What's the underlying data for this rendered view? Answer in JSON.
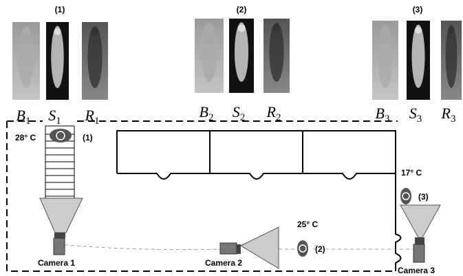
{
  "groups": [
    {
      "label": "(1)",
      "images": [
        {
          "letter": "B",
          "sub": "1"
        },
        {
          "letter": "S",
          "sub": "1"
        },
        {
          "letter": "R",
          "sub": "1"
        }
      ]
    },
    {
      "label": "(2)",
      "images": [
        {
          "letter": "B",
          "sub": "2"
        },
        {
          "letter": "S",
          "sub": "2"
        },
        {
          "letter": "R",
          "sub": "2"
        }
      ]
    },
    {
      "label": "(3)",
      "images": [
        {
          "letter": "B",
          "sub": "3"
        },
        {
          "letter": "S",
          "sub": "3"
        },
        {
          "letter": "R",
          "sub": "3"
        }
      ]
    }
  ],
  "people": [
    {
      "temp": "28° C",
      "label": "(1)"
    },
    {
      "temp": "25° C",
      "label": "(2)"
    },
    {
      "temp": "17° C",
      "label": "(3)"
    }
  ],
  "cameras": [
    "Camera 1",
    "Camera 2",
    "Camera 3"
  ]
}
